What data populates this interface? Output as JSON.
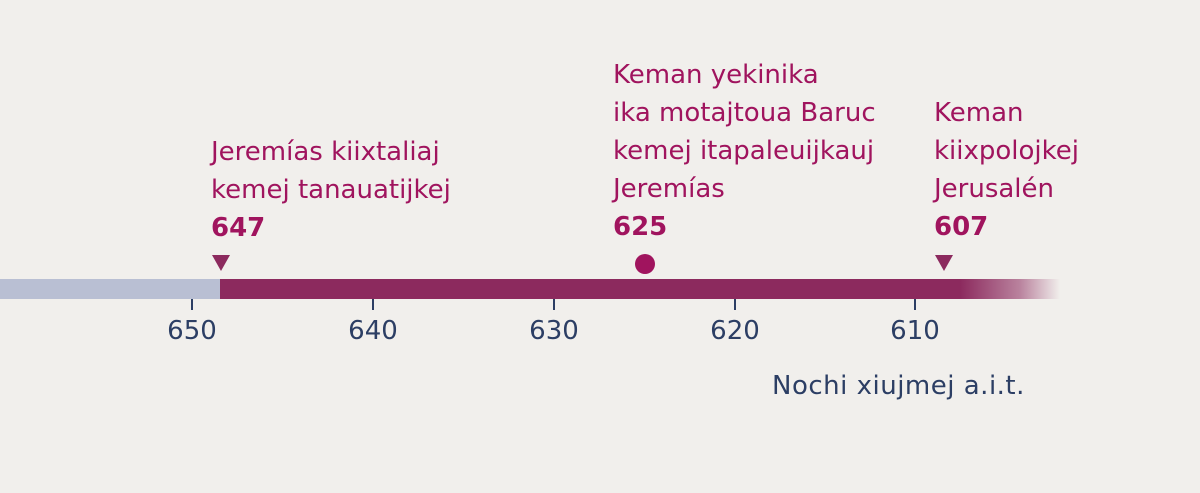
{
  "events": [
    {
      "year": 647,
      "lines": [
        "Jeremías kiixtaliaj",
        "kemej tanauatijkej"
      ],
      "marker": "triangle"
    },
    {
      "year": 625,
      "lines": [
        "Keman yekinika",
        "ika motajtoua Baruc",
        "kemej itapaleuijkauj",
        "Jeremías"
      ],
      "marker": "dot"
    },
    {
      "year": 607,
      "lines": [
        "Keman",
        "kiixpolojkej",
        "Jerusalén"
      ],
      "marker": "triangle"
    }
  ],
  "axis": {
    "ticks": [
      "650",
      "640",
      "630",
      "620",
      "610"
    ],
    "label": "Nochi xiujmej a.i.t."
  },
  "colors": {
    "accent": "#a0145e",
    "bar": "#8c2a5e",
    "past_bar": "#b9bfd3",
    "axis_text": "#2c3e64",
    "background": "#f1efec"
  }
}
